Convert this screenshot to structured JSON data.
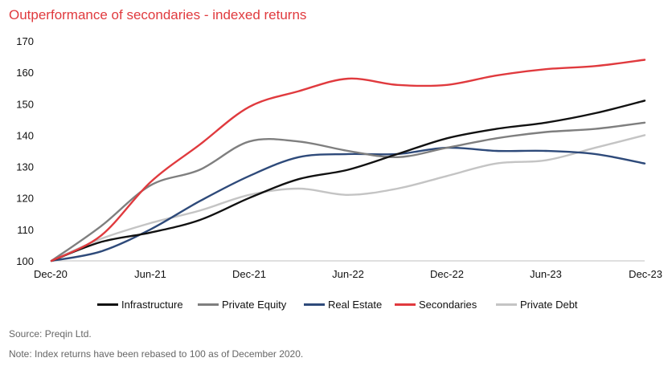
{
  "chart_data": {
    "type": "line",
    "title": "Outperformance of secondaries - indexed returns",
    "categories": [
      "Dec-20",
      "Jun-21",
      "Dec-21",
      "Jun-22",
      "Dec-22",
      "Jun-23",
      "Dec-23"
    ],
    "x": [
      0,
      0.25,
      0.5,
      0.75,
      1,
      1.25,
      1.5,
      1.75,
      2,
      2.25,
      2.5,
      2.75,
      3
    ],
    "ylim": [
      100,
      170
    ],
    "yticks": [
      100,
      110,
      120,
      130,
      140,
      150,
      160,
      170
    ],
    "legend_position": "bottom",
    "series": [
      {
        "name": "Infrastructure",
        "color": "#111111",
        "values": [
          100,
          106,
          109,
          113,
          120,
          126,
          129,
          134,
          139,
          142,
          144,
          147,
          151
        ]
      },
      {
        "name": "Private Equity",
        "color": "#7f7f7f",
        "values": [
          100,
          111,
          124,
          129,
          138,
          138,
          135,
          133,
          136,
          139,
          141,
          142,
          144
        ]
      },
      {
        "name": "Real Estate",
        "color": "#2e4a7a",
        "values": [
          100,
          103,
          110,
          119,
          127,
          133,
          134,
          134,
          136,
          135,
          135,
          134,
          131
        ]
      },
      {
        "name": "Secondaries",
        "color": "#e03a3e",
        "values": [
          100,
          108,
          125,
          137,
          149,
          154,
          158,
          156,
          156,
          159,
          161,
          162,
          164
        ]
      },
      {
        "name": "Private Debt",
        "color": "#c4c4c4",
        "values": [
          100,
          107,
          112,
          116,
          121,
          123,
          121,
          123,
          127,
          131,
          132,
          136,
          140
        ]
      }
    ]
  },
  "source": "Source: Preqin Ltd.",
  "note": "Note: Index returns have been rebased to 100 as of December 2020."
}
